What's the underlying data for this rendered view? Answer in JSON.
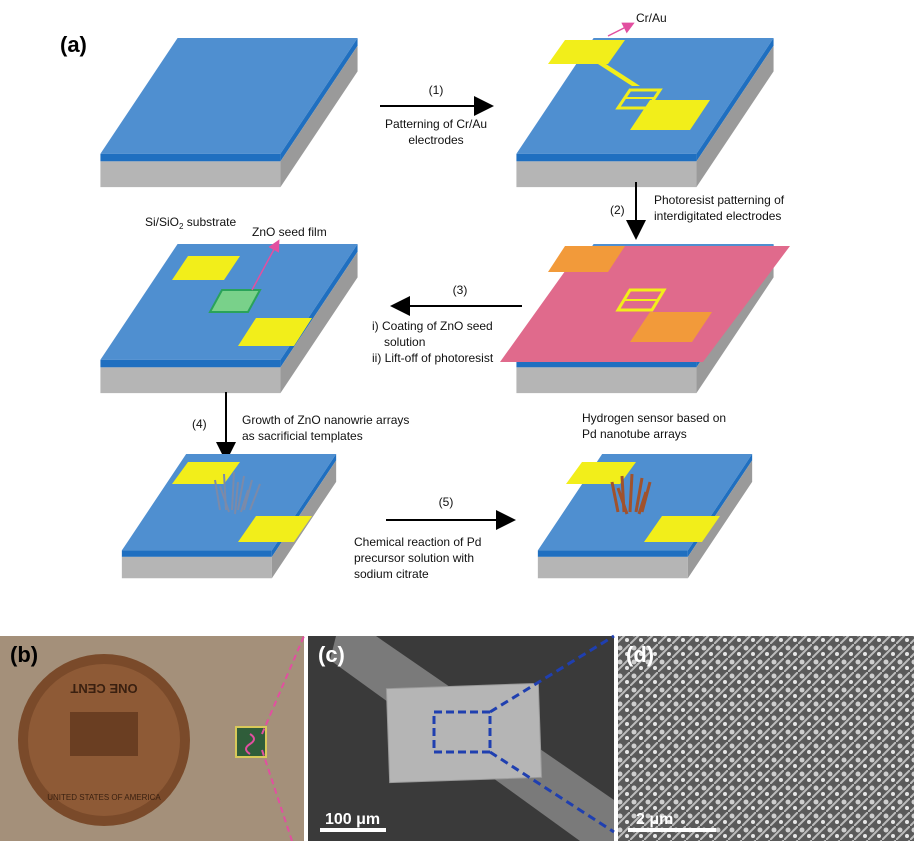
{
  "panel_a": {
    "label": "(a)",
    "substrate_label": "Si/SiO",
    "substrate_sub": "2",
    "substrate_suffix": " substrate",
    "cr_au_label": "Cr/Au",
    "zno_seed_label": "ZnO seed film",
    "steps": [
      {
        "num": "(1)",
        "lines": [
          "Patterning of Cr/Au",
          "electrodes"
        ]
      },
      {
        "num": "(2)",
        "lines": [
          "Photoresist patterning of",
          "interdigitated electrodes"
        ]
      },
      {
        "num": "(3)",
        "lines": [
          "i) Coating of ZnO seed",
          "solution",
          "ii) Lift-off of photoresist"
        ]
      },
      {
        "num": "(4)",
        "lines": [
          "Growth of ZnO nanowrie arrays",
          "as sacrificial templates"
        ]
      },
      {
        "num": "(5)",
        "lines": [
          "Chemical reaction of Pd",
          "precursor solution with",
          "sodium citrate"
        ]
      }
    ],
    "final_label": [
      "Hydrogen sensor based on",
      "Pd nanotube arrays"
    ]
  },
  "panel_b": {
    "label": "(b)",
    "coin_top": "ONE CENT",
    "coin_bottom": "UNITED STATES OF AMERICA"
  },
  "panel_c": {
    "label": "(c)",
    "scale": "100 μm"
  },
  "panel_d": {
    "label": "(d)",
    "scale": "2 μm"
  },
  "colors": {
    "blue": "#4f8fd0",
    "blue_edge": "#1f6fc0",
    "gray_side": "#9a9a9a",
    "gray_front": "#b5b5b5",
    "gold": "#f2ee1a",
    "pink": "#e06a8c",
    "orange": "#f29a3a",
    "green": "#79d18a",
    "magenta": "#e24fa0",
    "sem_bg": "#3a3a3a",
    "photo_bg": "#a4907a"
  }
}
